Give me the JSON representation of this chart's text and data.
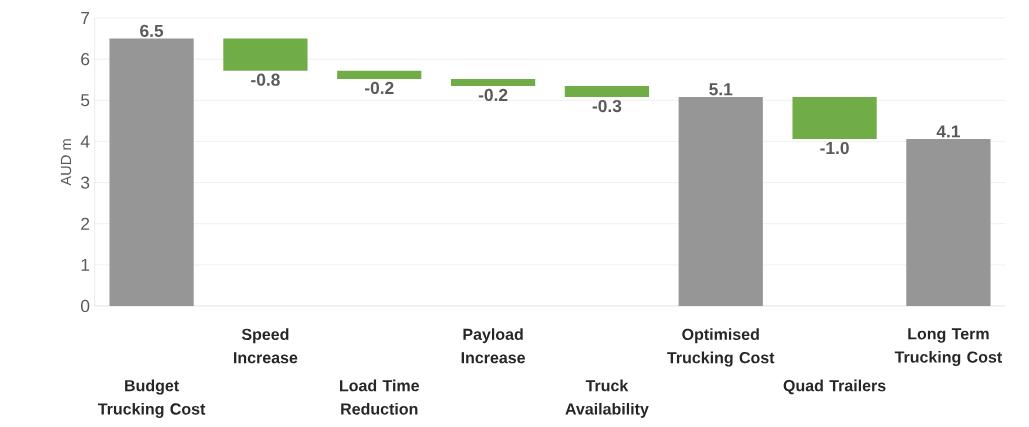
{
  "chart_data": {
    "type": "bar",
    "ylabel": "AUD m",
    "categories": [
      "Budget Trucking Cost",
      "Speed Increase",
      "Load Time Reduction",
      "Payload Increase",
      "Truck Availability",
      "Optimised Trucking Cost",
      "Quad Trailers",
      "Long Term Trucking Cost"
    ],
    "values": [
      6.5,
      -0.78,
      -0.2,
      -0.17,
      -0.27,
      5.08,
      -1.02,
      4.06
    ],
    "base": [
      0,
      6.5,
      5.72,
      5.52,
      5.35,
      0,
      5.08,
      0
    ],
    "colors": [
      "#969696",
      "#70ad47",
      "#70ad47",
      "#70ad47",
      "#70ad47",
      "#969696",
      "#70ad47",
      "#969696"
    ],
    "value_labels": [
      "6.5",
      "-0.8",
      "-0.2",
      "-0.2",
      "-0.3",
      "5.1",
      "-1.0",
      "4.1"
    ],
    "ylim": [
      0,
      7
    ],
    "yticks": [
      0,
      1,
      2,
      3,
      4,
      5,
      6,
      7
    ],
    "grid": "y"
  }
}
